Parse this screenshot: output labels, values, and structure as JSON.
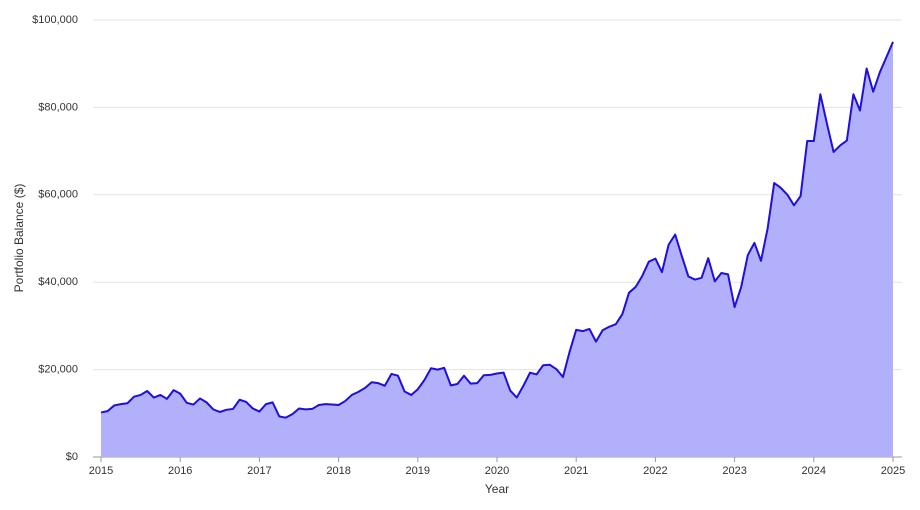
{
  "chart_data": {
    "type": "area",
    "y_label": "Portfolio Balance ($)",
    "x_label": "Year",
    "line_color": "#1f0fdc",
    "fill_color": "#b3b0fb",
    "grid": true,
    "xlim": [
      2015,
      2025
    ],
    "xticks": [
      2015,
      2016,
      2017,
      2018,
      2019,
      2020,
      2021,
      2022,
      2023,
      2024,
      2025
    ],
    "ylim": [
      0,
      100000
    ],
    "yticks": [
      {
        "value": 0,
        "label": "$0"
      },
      {
        "value": 20000,
        "label": "$20,000"
      },
      {
        "value": 40000,
        "label": "$40,000"
      },
      {
        "value": 60000,
        "label": "$60,000"
      },
      {
        "value": 80000,
        "label": "$80,000"
      },
      {
        "value": 100000,
        "label": "$100,000"
      }
    ],
    "x": [
      2015,
      2015.083,
      2015.167,
      2015.25,
      2015.333,
      2015.417,
      2015.5,
      2015.583,
      2015.667,
      2015.75,
      2015.833,
      2015.917,
      2016,
      2016.083,
      2016.167,
      2016.25,
      2016.333,
      2016.417,
      2016.5,
      2016.583,
      2016.667,
      2016.75,
      2016.833,
      2016.917,
      2017,
      2017.083,
      2017.167,
      2017.25,
      2017.333,
      2017.417,
      2017.5,
      2017.583,
      2017.667,
      2017.75,
      2017.833,
      2017.917,
      2018,
      2018.083,
      2018.167,
      2018.25,
      2018.333,
      2018.417,
      2018.5,
      2018.583,
      2018.667,
      2018.75,
      2018.833,
      2018.917,
      2019,
      2019.083,
      2019.167,
      2019.25,
      2019.333,
      2019.417,
      2019.5,
      2019.583,
      2019.667,
      2019.75,
      2019.833,
      2019.917,
      2020,
      2020.083,
      2020.167,
      2020.25,
      2020.333,
      2020.417,
      2020.5,
      2020.583,
      2020.667,
      2020.75,
      2020.833,
      2020.917,
      2021,
      2021.083,
      2021.167,
      2021.25,
      2021.333,
      2021.417,
      2021.5,
      2021.583,
      2021.667,
      2021.75,
      2021.833,
      2021.917,
      2022,
      2022.083,
      2022.167,
      2022.25,
      2022.333,
      2022.417,
      2022.5,
      2022.583,
      2022.667,
      2022.75,
      2022.833,
      2022.917,
      2023,
      2023.083,
      2023.167,
      2023.25,
      2023.333,
      2023.417,
      2023.5,
      2023.583,
      2023.667,
      2023.75,
      2023.833,
      2023.917,
      2024,
      2024.083,
      2024.167,
      2024.25,
      2024.333,
      2024.417,
      2024.5,
      2024.583,
      2024.667,
      2024.75,
      2024.833,
      2024.917,
      2025
    ],
    "values": [
      10200,
      10500,
      11800,
      12100,
      12300,
      13800,
      14200,
      15100,
      13600,
      14200,
      13300,
      15300,
      14500,
      12400,
      12000,
      13400,
      12500,
      10900,
      10300,
      10800,
      11000,
      13100,
      12600,
      11100,
      10400,
      12100,
      12500,
      9300,
      9000,
      9800,
      11100,
      10900,
      11000,
      11900,
      12100,
      12000,
      11900,
      12800,
      14200,
      14900,
      15800,
      17100,
      16900,
      16300,
      19000,
      18600,
      15000,
      14200,
      15500,
      17600,
      20300,
      20000,
      20400,
      16400,
      16700,
      18600,
      16800,
      16900,
      18700,
      18800,
      19100,
      19300,
      15200,
      13600,
      16300,
      19300,
      18900,
      21000,
      21100,
      20100,
      18300,
      24100,
      29100,
      28800,
      29300,
      26400,
      29000,
      29800,
      30400,
      32700,
      37600,
      38900,
      41400,
      44700,
      45400,
      42300,
      48600,
      50900,
      46000,
      41300,
      40600,
      41000,
      45500,
      40200,
      42100,
      41800,
      34300,
      38900,
      46200,
      49000,
      44900,
      52300,
      62700,
      61600,
      60000,
      57600,
      59700,
      72300,
      72300,
      83000,
      76200,
      69800,
      71300,
      72400,
      83000,
      79300,
      88900,
      83600,
      88000,
      91500,
      95000
    ]
  }
}
